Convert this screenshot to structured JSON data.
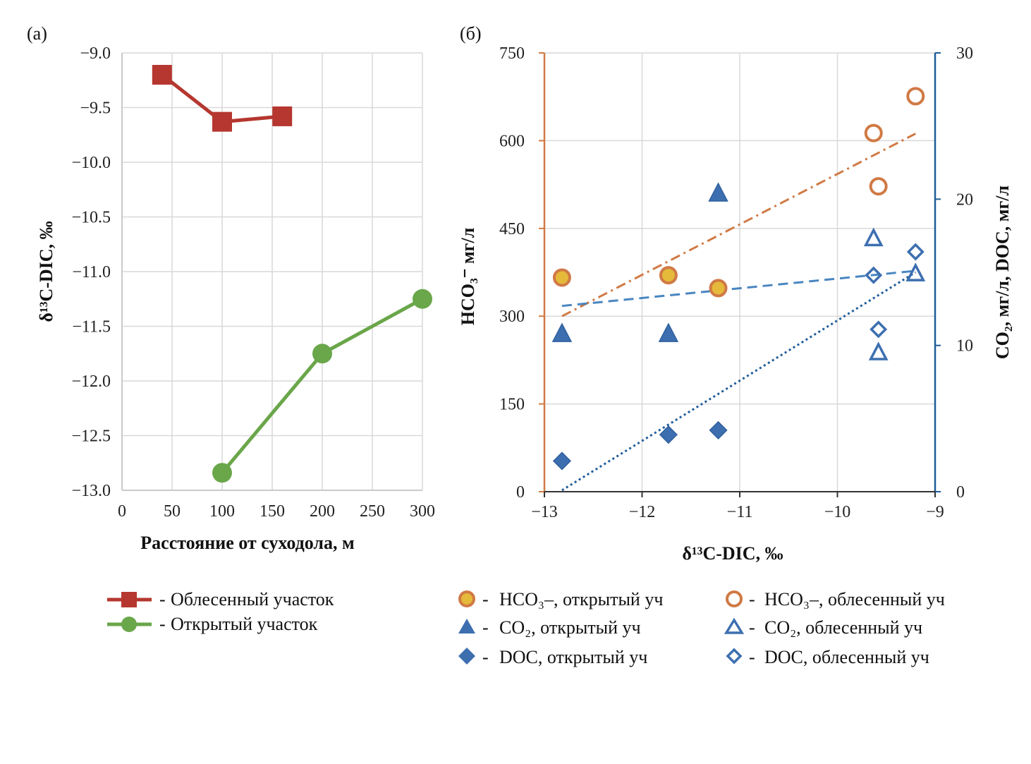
{
  "panel_a": {
    "label": "(а)",
    "legend": {
      "forested": "Облесенный участок",
      "open": "Открытый участок"
    }
  },
  "panel_b": {
    "label": "(б)",
    "legend": {
      "hco3_open": "HCO₃–, открытый уч",
      "hco3_forest": "HCO₃–, облесенный уч",
      "co2_open": "CO₂,  открытый уч",
      "co2_forest": "CO₂,  облесенный уч",
      "doc_open": "DOC, открытый уч",
      "doc_forest": "DOC, облесенный уч"
    }
  },
  "colors": {
    "forested_line": "#b5372f",
    "open_line": "#6aa64a",
    "orange": "#d07a45",
    "yellow_fill": "#e5b93a",
    "blue": "#3d6fb0",
    "blue_dark": "#1f5c99",
    "grid": "#d9d9d9"
  },
  "chart_data": [
    {
      "type": "line",
      "panel": "а",
      "xlabel": "Расстояние от суходола, м",
      "ylabel": "δ¹³C-DIC, ‰",
      "xlim": [
        0,
        300
      ],
      "ylim": [
        -13.0,
        -9.0
      ],
      "xticks": [
        0,
        50,
        100,
        150,
        200,
        250,
        300
      ],
      "yticks": [
        -9.0,
        -9.5,
        -10.0,
        -10.5,
        -11.0,
        -11.5,
        -12.0,
        -12.5,
        -13.0
      ],
      "ytick_labels": [
        "−9.0",
        "−9.5",
        "−10.0",
        "−10.5",
        "−11.0",
        "−11.5",
        "−12.0",
        "−12.5",
        "−13.0"
      ],
      "grid": true,
      "series": [
        {
          "name": "Облесенный участок",
          "marker": "square",
          "x": [
            40,
            100,
            160
          ],
          "y": [
            -9.2,
            -9.63,
            -9.58
          ]
        },
        {
          "name": "Открытый участок",
          "marker": "circle",
          "x": [
            100,
            200,
            300
          ],
          "y": [
            -12.84,
            -11.75,
            -11.25
          ]
        }
      ]
    },
    {
      "type": "scatter",
      "panel": "б",
      "xlabel": "δ¹³C-DIC, ‰",
      "ylabel_left": "HCO₃⁻ мг/л",
      "ylabel_right": "CO₂, мг/л, DOC, мг/л",
      "xlim": [
        -13,
        -9
      ],
      "ylim_left": [
        0,
        750
      ],
      "ylim_right": [
        0,
        30
      ],
      "xticks": [
        -13,
        -12,
        -11,
        -10,
        -9
      ],
      "xtick_labels": [
        "−13",
        "−12",
        "−11",
        "−10",
        "−9"
      ],
      "yticks_left": [
        0,
        150,
        300,
        450,
        600,
        750
      ],
      "yticks_right": [
        0,
        10,
        20,
        30
      ],
      "grid": true,
      "series": [
        {
          "name": "HCO₃–, открытый уч",
          "axis": "left",
          "marker": "circle-filled",
          "x": [
            -12.82,
            -11.73,
            -11.22
          ],
          "y": [
            366,
            370,
            348
          ]
        },
        {
          "name": "HCO₃–, облесенный уч",
          "axis": "left",
          "marker": "circle-open",
          "x": [
            -9.63,
            -9.58,
            -9.2
          ],
          "y": [
            613,
            522,
            676
          ]
        },
        {
          "name": "CO₂,  открытый уч",
          "axis": "right",
          "marker": "triangle-filled",
          "x": [
            -12.82,
            -11.73,
            -11.22
          ],
          "y": [
            10.8,
            10.8,
            20.4
          ]
        },
        {
          "name": "CO₂,  облесенный уч",
          "axis": "right",
          "marker": "triangle-open",
          "x": [
            -9.63,
            -9.58,
            -9.2
          ],
          "y": [
            17.3,
            9.5,
            14.9
          ]
        },
        {
          "name": "DOC, открытый уч",
          "axis": "right",
          "marker": "diamond-filled",
          "x": [
            -12.82,
            -11.73,
            -11.22
          ],
          "y": [
            2.1,
            3.9,
            4.2
          ]
        },
        {
          "name": "DOC, облесенный уч",
          "axis": "right",
          "marker": "diamond-open",
          "x": [
            -9.63,
            -9.58,
            -9.2
          ],
          "y": [
            14.8,
            11.1,
            16.4
          ]
        }
      ],
      "trendlines": [
        {
          "for": "HCO₃–",
          "axis": "left",
          "style": "dash-dot",
          "x": [
            -12.82,
            -9.2
          ],
          "y": [
            300,
            612
          ]
        },
        {
          "for": "CO₂",
          "axis": "right",
          "style": "dashed",
          "x": [
            -12.82,
            -9.2
          ],
          "y": [
            12.7,
            15.1
          ]
        },
        {
          "for": "DOC",
          "axis": "right",
          "style": "dotted",
          "x": [
            -12.82,
            -9.2
          ],
          "y": [
            0.1,
            15.0
          ]
        }
      ]
    }
  ]
}
